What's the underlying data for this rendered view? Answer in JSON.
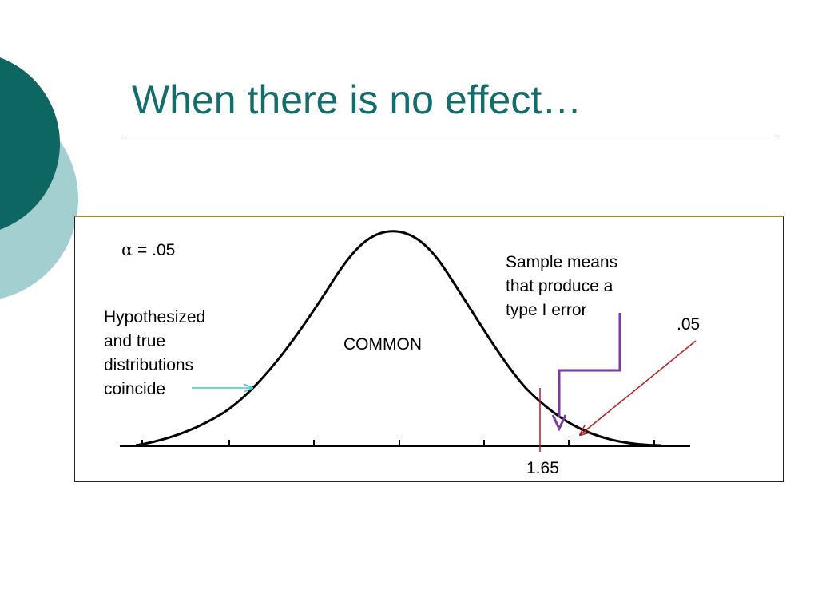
{
  "slide": {
    "title": "When there is no effect…",
    "colors": {
      "title": "#146c6b",
      "decor_dark": "#0e6663",
      "decor_light": "#a4cfd0",
      "cyan_arrow": "#3fc8c8",
      "purple_arrow": "#7a3b9c",
      "red_arrow": "#b02020"
    }
  },
  "figure": {
    "alpha": {
      "symbol": "α",
      "text": " = .05"
    },
    "hypothesized_lines": [
      "Hypothesized",
      "and true",
      "distributions",
      "coincide"
    ],
    "common_label": "COMMON",
    "sample_lines": [
      "Sample means",
      "that produce a",
      "type I error"
    ],
    "tail_label": ".05",
    "critical_value": "1.65"
  }
}
